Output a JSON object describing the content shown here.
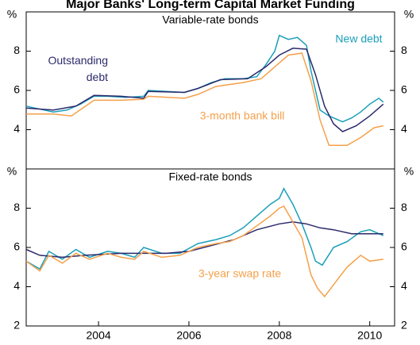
{
  "title": "Major Banks' Long-term Capital Market Funding",
  "chart_data": [
    {
      "type": "line",
      "subtitle": "Variable-rate bonds",
      "yunit": "%",
      "xlim": [
        2002.4,
        2010.55
      ],
      "ylim": [
        2,
        10
      ],
      "yticks": [
        4,
        6,
        8
      ],
      "series": [
        {
          "name": "New debt",
          "color": "#1a9fba",
          "x": [
            2002.4,
            2002.8,
            2003.0,
            2003.3,
            2003.6,
            2003.9,
            2004.2,
            2004.6,
            2005.0,
            2005.1,
            2005.5,
            2005.9,
            2006.2,
            2006.5,
            2006.8,
            2007.2,
            2007.5,
            2007.7,
            2007.9,
            2008.0,
            2008.2,
            2008.4,
            2008.6,
            2008.7,
            2008.8,
            2008.9,
            2009.1,
            2009.4,
            2009.6,
            2009.8,
            2010.0,
            2010.2,
            2010.3
          ],
          "values": [
            5.2,
            5.0,
            4.9,
            5.0,
            5.3,
            5.7,
            5.7,
            5.65,
            5.7,
            6.0,
            5.95,
            5.9,
            6.1,
            6.4,
            6.6,
            6.6,
            6.7,
            7.3,
            8.0,
            8.8,
            8.6,
            8.7,
            8.3,
            7.0,
            6.0,
            5.0,
            4.7,
            4.4,
            4.6,
            4.9,
            5.3,
            5.6,
            5.4
          ]
        },
        {
          "name": "Outstanding debt",
          "color": "#2b2a6b",
          "x": [
            2002.4,
            2003.0,
            2003.5,
            2003.9,
            2004.5,
            2005.0,
            2005.1,
            2005.9,
            2006.2,
            2006.7,
            2007.3,
            2007.7,
            2008.0,
            2008.3,
            2008.6,
            2008.8,
            2009.0,
            2009.2,
            2009.4,
            2009.7,
            2010.0,
            2010.3
          ],
          "values": [
            5.1,
            5.0,
            5.2,
            5.75,
            5.7,
            5.6,
            5.95,
            5.9,
            6.1,
            6.55,
            6.6,
            7.2,
            7.8,
            8.15,
            8.1,
            6.8,
            5.2,
            4.3,
            3.9,
            4.2,
            4.7,
            5.3
          ]
        },
        {
          "name": "3-month bank bill",
          "color": "#f5a04a",
          "x": [
            2002.4,
            2003.0,
            2003.4,
            2003.9,
            2004.5,
            2005.0,
            2005.1,
            2005.9,
            2006.2,
            2006.6,
            2007.2,
            2007.6,
            2008.0,
            2008.2,
            2008.5,
            2008.7,
            2008.9,
            2009.1,
            2009.5,
            2009.8,
            2010.1,
            2010.3
          ],
          "values": [
            4.8,
            4.8,
            4.7,
            5.5,
            5.5,
            5.55,
            5.7,
            5.6,
            5.8,
            6.2,
            6.4,
            6.6,
            7.4,
            7.8,
            7.9,
            6.5,
            4.5,
            3.2,
            3.2,
            3.6,
            4.1,
            4.2
          ]
        }
      ]
    },
    {
      "type": "line",
      "subtitle": "Fixed-rate bonds",
      "yunit": "%",
      "xlim": [
        2002.4,
        2010.55
      ],
      "ylim": [
        2,
        10
      ],
      "yticks": [
        2,
        4,
        6,
        8
      ],
      "xticks": [
        2004,
        2006,
        2008,
        2010
      ],
      "series": [
        {
          "color": "#1a9fba",
          "x": [
            2002.4,
            2002.7,
            2002.9,
            2003.2,
            2003.5,
            2003.8,
            2004.2,
            2004.5,
            2004.8,
            2005.0,
            2005.4,
            2005.8,
            2006.2,
            2006.6,
            2006.9,
            2007.2,
            2007.5,
            2007.8,
            2008.0,
            2008.1,
            2008.3,
            2008.5,
            2008.7,
            2008.8,
            2008.95,
            2009.2,
            2009.5,
            2009.8,
            2010.0,
            2010.3
          ],
          "values": [
            5.3,
            4.9,
            5.8,
            5.4,
            5.9,
            5.5,
            5.8,
            5.7,
            5.5,
            6.0,
            5.7,
            5.7,
            6.2,
            6.4,
            6.6,
            7.0,
            7.6,
            8.2,
            8.5,
            9.0,
            8.2,
            7.2,
            6.0,
            5.3,
            5.1,
            6.0,
            6.3,
            6.8,
            6.9,
            6.6
          ]
        },
        {
          "color": "#2b2a6b",
          "x": [
            2002.4,
            2002.7,
            2003.2,
            2003.7,
            2004.5,
            2005.5,
            2006.0,
            2006.5,
            2007.0,
            2007.5,
            2008.0,
            2008.3,
            2008.6,
            2008.9,
            2009.2,
            2009.6,
            2010.3
          ],
          "values": [
            5.9,
            5.6,
            5.5,
            5.6,
            5.7,
            5.7,
            5.8,
            6.1,
            6.4,
            6.9,
            7.2,
            7.3,
            7.2,
            7.0,
            6.9,
            6.7,
            6.7
          ]
        },
        {
          "name": "3-year swap rate",
          "color": "#f5a04a",
          "x": [
            2002.4,
            2002.7,
            2002.9,
            2003.2,
            2003.5,
            2003.8,
            2004.2,
            2004.5,
            2004.8,
            2005.0,
            2005.4,
            2005.8,
            2006.2,
            2006.6,
            2006.9,
            2007.2,
            2007.5,
            2007.8,
            2008.0,
            2008.1,
            2008.3,
            2008.5,
            2008.7,
            2008.85,
            2009.0,
            2009.3,
            2009.5,
            2009.8,
            2010.0,
            2010.3
          ],
          "values": [
            5.3,
            4.8,
            5.6,
            5.2,
            5.7,
            5.4,
            5.7,
            5.5,
            5.4,
            5.8,
            5.5,
            5.6,
            6.0,
            6.2,
            6.3,
            6.6,
            7.1,
            7.6,
            8.0,
            8.1,
            7.3,
            6.5,
            4.6,
            3.9,
            3.5,
            4.4,
            5.0,
            5.6,
            5.3,
            5.4
          ]
        }
      ]
    }
  ]
}
